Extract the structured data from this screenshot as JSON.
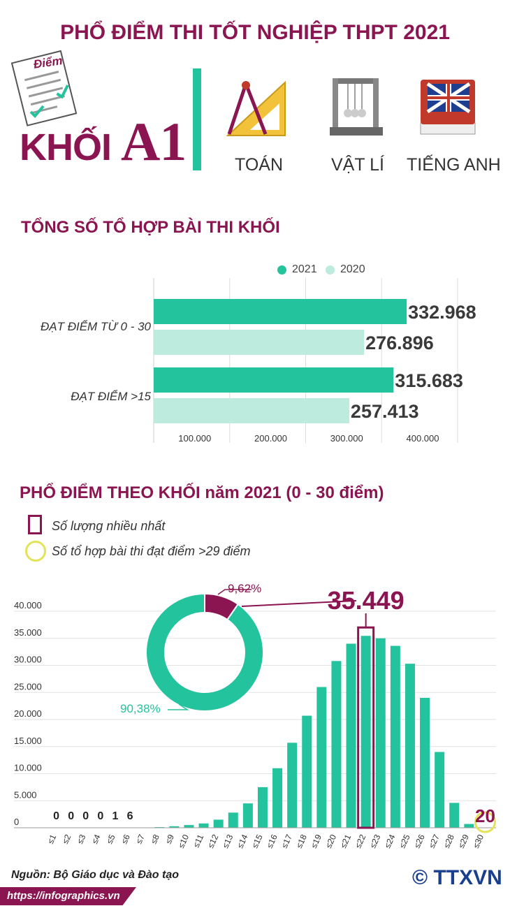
{
  "title": "PHỔ ĐIỂM THI TỐT NGHIỆP THPT 2021",
  "paper_label": "Điểm",
  "khoi_prefix": "KHỐI",
  "khoi_name": "A1",
  "subjects": [
    "TOÁN",
    "VẬT LÍ",
    "TIẾNG ANH"
  ],
  "icons": [
    "paper-checklist-icon",
    "ruler-compass-icon",
    "newtons-cradle-icon",
    "dictionary-icon"
  ],
  "colors": {
    "brand": "#8b1550",
    "green": "#22c39d",
    "light_green": "#bdebdd",
    "highlight": "#e3e35a"
  },
  "section1_title": "TỔNG SỐ TỔ HỢP BÀI THI KHỐI",
  "section2_title": "PHỔ ĐIỂM THEO KHỐI năm 2021 (0 - 30 điểm)",
  "key": {
    "max_label": "Số lượng nhiều nhất",
    "over29_label": "Số tổ hợp bài thi đạt điểm >29 điểm"
  },
  "source": "Nguồn: Bộ Giáo dục và Đào tạo",
  "footer_url": "https://infographics.vn",
  "logo": "© TTXVN",
  "chart_data": [
    {
      "type": "bar",
      "orientation": "horizontal",
      "categories": [
        "ĐẠT ĐIỂM TỪ 0 - 30",
        "ĐẠT ĐIỂM >15"
      ],
      "series": [
        {
          "name": "2021",
          "values": [
            332968,
            315683
          ],
          "labels": [
            "332.968",
            "315.683"
          ]
        },
        {
          "name": "2020",
          "values": [
            276896,
            257413
          ],
          "labels": [
            "276.896",
            "257.413"
          ]
        }
      ],
      "xticks": [
        "100.000",
        "200.000",
        "300.000",
        "400.000"
      ],
      "xlim": [
        0,
        400000
      ],
      "grid": true,
      "legend": "top"
    },
    {
      "type": "bar",
      "categories": [
        "≤1",
        "≤2",
        "≤3",
        "≤4",
        "≤5",
        "≤6",
        "≤7",
        "≤8",
        "≤9",
        "≤10",
        "≤11",
        "≤12",
        "≤13",
        "≤14",
        "≤15",
        "≤16",
        "≤17",
        "≤18",
        "≤19",
        "≤20",
        "≤21",
        "≤22",
        "≤23",
        "≤24",
        "≤25",
        "≤26",
        "≤27",
        "≤28",
        "≤29",
        "≤30"
      ],
      "values": [
        0,
        0,
        0,
        0,
        1,
        6,
        30,
        120,
        280,
        500,
        800,
        1500,
        2800,
        4500,
        7500,
        11000,
        15700,
        20700,
        26000,
        30800,
        34000,
        35449,
        35000,
        33600,
        30300,
        24000,
        14000,
        4600,
        700,
        20
      ],
      "small_labels": [
        "0",
        "0",
        "0",
        "0",
        "1",
        "6"
      ],
      "yticks": [
        "40.000",
        "35.000",
        "30.000",
        "25.000",
        "20.000",
        "15.000",
        "10.000",
        "5.000",
        "0"
      ],
      "ylim": [
        0,
        40000
      ],
      "max_label": "35.449",
      "max_category": "≤22",
      "over29_label": "20"
    },
    {
      "type": "pie",
      "slices": [
        {
          "label": "9,62%",
          "value": 9.62
        },
        {
          "label": "90,38%",
          "value": 90.38
        }
      ]
    }
  ]
}
